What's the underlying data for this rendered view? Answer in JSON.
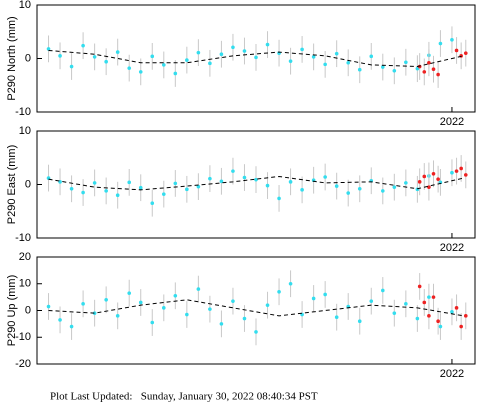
{
  "chart_data": [
    {
      "type": "scatter",
      "ylabel": "P290 North (mm)",
      "xlim": [
        2020.2,
        2022.1
      ],
      "xticks": [
        2022
      ],
      "ylim": [
        -10,
        10
      ],
      "yticks": [
        -10,
        0,
        10
      ],
      "series": [
        {
          "color": "#33ddee",
          "error": 2.5,
          "x": [
            2020.25,
            2020.3,
            2020.35,
            2020.4,
            2020.45,
            2020.5,
            2020.55,
            2020.6,
            2020.65,
            2020.7,
            2020.75,
            2020.8,
            2020.85,
            2020.9,
            2020.95,
            2021.0,
            2021.05,
            2021.1,
            2021.15,
            2021.2,
            2021.25,
            2021.3,
            2021.35,
            2021.4,
            2021.45,
            2021.5,
            2021.55,
            2021.6,
            2021.65,
            2021.7,
            2021.75,
            2021.8,
            2021.85,
            2021.9,
            2021.95,
            2022.0
          ],
          "values": [
            1.8,
            0.5,
            -1.5,
            2.4,
            0.3,
            -0.6,
            1.2,
            -1.8,
            -2.5,
            0.4,
            -1.2,
            -2.8,
            -0.3,
            1.1,
            -0.9,
            0.8,
            2.1,
            1.4,
            0.2,
            2.6,
            1.0,
            -0.5,
            1.7,
            0.3,
            -1.1,
            0.9,
            -0.8,
            -2.1,
            0.4,
            -1.6,
            -2.3,
            -0.7,
            -1.9,
            0.6,
            2.8,
            3.5
          ]
        },
        {
          "color": "#ee2222",
          "error": 2.5,
          "x": [
            2021.86,
            2021.88,
            2021.9,
            2021.92,
            2021.94,
            2022.02,
            2022.04,
            2022.06
          ],
          "values": [
            -1.5,
            -2.5,
            -0.8,
            -2.0,
            -3.0,
            1.5,
            0.5,
            1.0
          ]
        },
        {
          "color": "#000000",
          "style": "dashed",
          "x": [
            2020.25,
            2020.45,
            2020.65,
            2020.85,
            2021.05,
            2021.25,
            2021.45,
            2021.65,
            2021.85,
            2022.05
          ],
          "values": [
            1.5,
            0.8,
            -0.8,
            -0.8,
            0.5,
            1.2,
            0.5,
            -1.2,
            -1.5,
            0.5
          ]
        }
      ]
    },
    {
      "type": "scatter",
      "ylabel": "P290 East (mm)",
      "xlim": [
        2020.2,
        2022.1
      ],
      "xticks": [
        2022
      ],
      "ylim": [
        -10,
        10
      ],
      "yticks": [
        -10,
        0,
        10
      ],
      "series": [
        {
          "color": "#33ddee",
          "error": 2.5,
          "x": [
            2020.25,
            2020.3,
            2020.35,
            2020.4,
            2020.45,
            2020.5,
            2020.55,
            2020.6,
            2020.65,
            2020.7,
            2020.75,
            2020.8,
            2020.85,
            2020.9,
            2020.95,
            2021.0,
            2021.05,
            2021.1,
            2021.15,
            2021.2,
            2021.25,
            2021.3,
            2021.35,
            2021.4,
            2021.45,
            2021.5,
            2021.55,
            2021.6,
            2021.65,
            2021.7,
            2021.75,
            2021.8,
            2021.85,
            2021.9,
            2021.95,
            2022.0
          ],
          "values": [
            1.2,
            0.5,
            -0.8,
            -1.5,
            0.3,
            -1.2,
            -2.0,
            0.4,
            -0.6,
            -3.5,
            -1.8,
            0.2,
            -0.9,
            -0.4,
            1.1,
            0.6,
            2.5,
            1.3,
            0.9,
            -0.2,
            -2.6,
            0.5,
            -1.0,
            0.8,
            1.4,
            -0.3,
            -1.6,
            -0.8,
            0.7,
            -1.2,
            -0.5,
            0.3,
            -0.9,
            1.6,
            0.4,
            2.2
          ]
        },
        {
          "color": "#ee2222",
          "error": 2.5,
          "x": [
            2021.86,
            2021.88,
            2021.9,
            2021.92,
            2021.94,
            2022.02,
            2022.04,
            2022.06
          ],
          "values": [
            0.5,
            1.5,
            -0.5,
            2.0,
            1.0,
            2.5,
            3.0,
            1.8
          ]
        },
        {
          "color": "#000000",
          "style": "dashed",
          "x": [
            2020.25,
            2020.45,
            2020.65,
            2020.85,
            2021.05,
            2021.25,
            2021.45,
            2021.65,
            2021.85,
            2022.05
          ],
          "values": [
            1.0,
            -0.5,
            -1.0,
            -0.3,
            0.5,
            1.5,
            0.3,
            0.5,
            -0.8,
            1.2
          ]
        }
      ]
    },
    {
      "type": "scatter",
      "ylabel": "P290 Up (mm)",
      "xlim": [
        2020.2,
        2022.1
      ],
      "xticks": [
        2022
      ],
      "ylim": [
        -20,
        20
      ],
      "yticks": [
        -20,
        -10,
        0,
        10,
        20
      ],
      "series": [
        {
          "color": "#33ddee",
          "error": 5,
          "x": [
            2020.25,
            2020.3,
            2020.35,
            2020.4,
            2020.45,
            2020.5,
            2020.55,
            2020.6,
            2020.65,
            2020.7,
            2020.75,
            2020.8,
            2020.85,
            2020.9,
            2020.95,
            2021.0,
            2021.05,
            2021.1,
            2021.15,
            2021.2,
            2021.25,
            2021.3,
            2021.35,
            2021.4,
            2021.45,
            2021.5,
            2021.55,
            2021.6,
            2021.65,
            2021.7,
            2021.75,
            2021.8,
            2021.85,
            2021.9,
            2021.95,
            2022.0
          ],
          "values": [
            1.5,
            -3.5,
            -6,
            2.5,
            -1,
            4,
            -2,
            6.5,
            3,
            -4.5,
            1,
            5.5,
            -1.5,
            8,
            0.5,
            -5,
            3.5,
            -3,
            -8,
            2,
            7,
            10,
            -1.5,
            4.5,
            6,
            -2.5,
            1.5,
            -4,
            3.5,
            7.5,
            -1,
            2.5,
            -3,
            5,
            -6,
            -0.5
          ]
        },
        {
          "color": "#ee2222",
          "error": 5,
          "x": [
            2021.86,
            2021.88,
            2021.9,
            2021.92,
            2021.94,
            2022.02,
            2022.04,
            2022.06
          ],
          "values": [
            9,
            3,
            -2,
            5,
            -4,
            1,
            -6,
            -2
          ]
        },
        {
          "color": "#000000",
          "style": "dashed",
          "x": [
            2020.25,
            2020.45,
            2020.65,
            2020.85,
            2021.05,
            2021.25,
            2021.45,
            2021.65,
            2021.85,
            2022.05
          ],
          "values": [
            0,
            -1,
            2,
            4,
            1,
            -2,
            0,
            2,
            1,
            -2
          ]
        }
      ]
    }
  ],
  "footer": "Plot Last Updated:   Sunday, January 30, 2022 08:40:34 PST"
}
